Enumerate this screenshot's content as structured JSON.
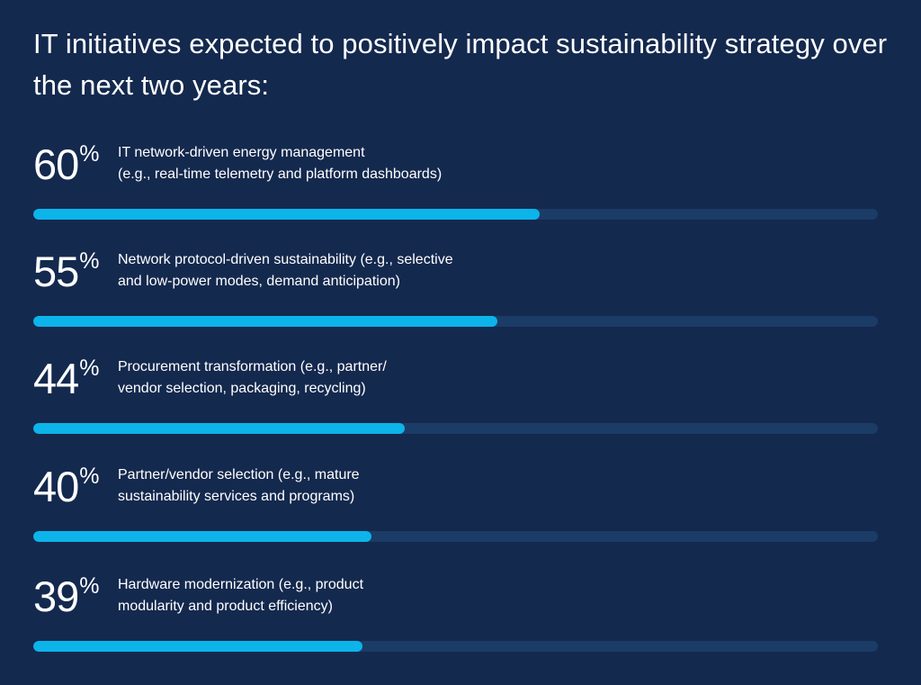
{
  "title": "IT initiatives expected to positively impact sustainability strategy over the next two years:",
  "percent_sign": "%",
  "colors": {
    "background": "#14294e",
    "bar_fill": "#0cb4ea",
    "bar_track": "#1b3c66",
    "text": "#ffffff"
  },
  "chart_data": {
    "type": "bar",
    "orientation": "horizontal",
    "title": "IT initiatives expected to positively impact sustainability strategy over the next two years:",
    "xlim": [
      0,
      100
    ],
    "unit": "%",
    "categories": [
      "IT network-driven energy management (e.g., real-time telemetry and platform dashboards)",
      "Network protocol-driven sustainability (e.g., selective and low-power modes, demand anticipation)",
      "Procurement transformation (e.g., partner/ vendor selection, packaging, recycling)",
      "Partner/vendor selection (e.g., mature sustainability services and programs)",
      "Hardware modernization (e.g., product modularity and product efficiency)"
    ],
    "values": [
      60,
      55,
      44,
      40,
      39
    ]
  },
  "items": [
    {
      "value": "60",
      "line1": "IT network-driven energy management",
      "line2": "(e.g., real-time telemetry and platform dashboards)"
    },
    {
      "value": "55",
      "line1": "Network protocol-driven sustainability (e.g., selective",
      "line2": "and low-power modes, demand anticipation)"
    },
    {
      "value": "44",
      "line1": "Procurement transformation (e.g., partner/",
      "line2": "vendor selection, packaging, recycling)"
    },
    {
      "value": "40",
      "line1": "Partner/vendor selection (e.g., mature",
      "line2": "sustainability services and programs)"
    },
    {
      "value": "39",
      "line1": "Hardware modernization (e.g., product",
      "line2": "modularity and product efficiency)"
    }
  ]
}
